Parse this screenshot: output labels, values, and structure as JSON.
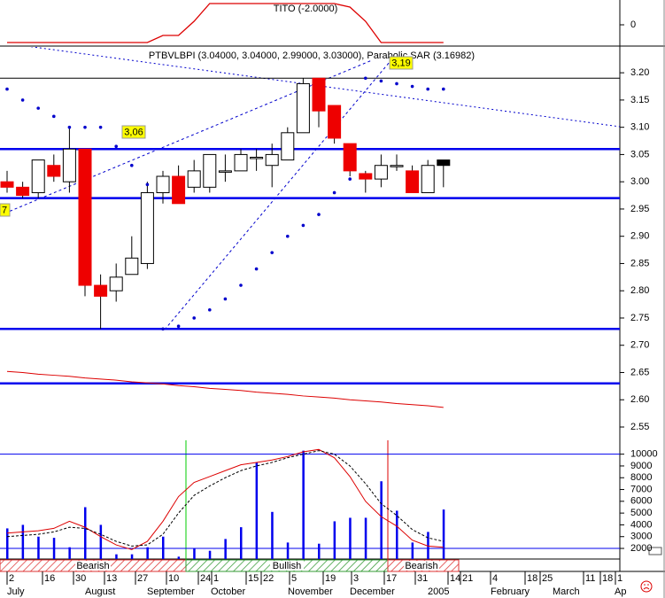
{
  "chart_data": [
    {
      "type": "candlestick",
      "title": "PTBVLBPI (3.04000, 3.04000, 2.99000, 3.03000), Parabolic SAR (3.16982)",
      "open": [
        3.0,
        2.99,
        2.98,
        3.03,
        3.0,
        3.06,
        2.81,
        2.8,
        2.83,
        2.85,
        2.98,
        3.01,
        2.99,
        2.99,
        3.02,
        3.02,
        3.045,
        3.03,
        3.04,
        3.09,
        3.19,
        3.14,
        3.07,
        3.015,
        3.005,
        3.03,
        3.02,
        2.98,
        3.04
      ],
      "high": [
        3.02,
        3.0,
        3.04,
        3.05,
        3.1,
        3.06,
        2.83,
        2.85,
        2.9,
        3.0,
        3.02,
        3.03,
        3.04,
        3.05,
        3.05,
        3.06,
        3.06,
        3.07,
        3.1,
        3.19,
        3.19,
        3.14,
        3.07,
        3.02,
        3.05,
        3.05,
        3.03,
        3.04,
        3.04
      ],
      "low": [
        2.98,
        2.97,
        2.97,
        3.0,
        2.98,
        2.79,
        2.73,
        2.78,
        2.83,
        2.84,
        2.96,
        2.96,
        2.98,
        2.98,
        3.0,
        3.02,
        3.02,
        2.99,
        3.04,
        3.09,
        3.1,
        3.07,
        3.01,
        2.98,
        2.99,
        3.02,
        2.98,
        2.98,
        2.99
      ],
      "close": [
        2.99,
        2.975,
        3.04,
        3.01,
        3.06,
        2.81,
        2.79,
        2.825,
        2.86,
        2.98,
        3.01,
        2.96,
        3.02,
        3.05,
        3.02,
        3.05,
        3.045,
        3.05,
        3.09,
        3.18,
        3.13,
        3.08,
        3.02,
        3.005,
        3.03,
        3.03,
        2.98,
        3.03,
        3.03
      ],
      "up_color": "#ffffff",
      "down_color": "#ee0000",
      "last_color": "#000000",
      "sar": [
        3.17,
        3.15,
        3.135,
        3.12,
        3.1,
        3.1,
        3.1,
        3.065,
        3.03,
        2.995,
        2.73,
        2.735,
        2.75,
        2.765,
        2.785,
        2.81,
        2.84,
        2.87,
        2.9,
        2.92,
        2.94,
        2.98,
        3.005,
        3.19,
        3.185,
        3.18,
        3.175,
        3.17,
        3.17
      ],
      "sar_color": "#0000cc",
      "ma": [
        2.652,
        2.65,
        2.647,
        2.645,
        2.643,
        2.64,
        2.638,
        2.636,
        2.633,
        2.631,
        2.629,
        2.626,
        2.624,
        2.621,
        2.619,
        2.617,
        2.614,
        2.612,
        2.61,
        2.607,
        2.605,
        2.603,
        2.6,
        2.598,
        2.596,
        2.593,
        2.591,
        2.589,
        2.586
      ],
      "ma_color": "#dd0000",
      "levels": [
        {
          "value": 3.19,
          "color": "#000000"
        },
        {
          "value": 3.06,
          "color": "#0000ee"
        },
        {
          "value": 2.97,
          "color": "#0000ee"
        },
        {
          "value": 2.73,
          "color": "#0000ee"
        },
        {
          "value": 2.63,
          "color": "#0000ee"
        }
      ],
      "annotations": [
        "3,06",
        "3,19",
        "7"
      ],
      "ylim": [
        2.537,
        3.249
      ],
      "yticks": [
        {
          "value": 3.2,
          "label": "3.20"
        },
        3.15,
        {
          "value": 3.1,
          "label": "3.10"
        },
        3.05,
        {
          "value": 3,
          "label": "3.00"
        },
        2.95,
        {
          "value": 2.9,
          "label": "2.90"
        },
        2.85,
        {
          "value": 2.8,
          "label": "2.80"
        },
        2.75,
        {
          "value": 2.7,
          "label": "2.70"
        },
        2.65,
        {
          "value": 2.6,
          "label": "2.60"
        },
        2.55
      ]
    },
    {
      "type": "line",
      "title": "TITO (-2.0000)",
      "values": [
        -2,
        -2,
        -2,
        -2,
        -2,
        -2,
        -2,
        -2,
        -2,
        -2,
        -1.2,
        -1.2,
        0.4,
        2.4,
        2.4,
        2.4,
        2.4,
        2.4,
        2.4,
        2.4,
        2.4,
        2.4,
        2.0,
        0.4,
        -2,
        -2,
        -2,
        -2,
        -2
      ],
      "color": "#dd0000",
      "ylim": [
        -2.4,
        2.8
      ],
      "yticks": [
        0
      ]
    },
    {
      "type": "bar",
      "values": [
        3700,
        4000,
        3000,
        2900,
        2100,
        5500,
        4000,
        1500,
        1500,
        2100,
        3000,
        1300,
        2000,
        1800,
        2800,
        3800,
        9300,
        5100,
        2500,
        10300,
        2400,
        4300,
        4600,
        4600,
        7700,
        5200,
        2500,
        3400,
        5300
      ],
      "color": "#0000ee",
      "series": [
        {
          "color": "#dd0000",
          "dashed": false,
          "values": [
            3300,
            3400,
            3500,
            3700,
            4300,
            3800,
            3000,
            2300,
            1900,
            2600,
            4300,
            6400,
            7600,
            8100,
            8600,
            9100,
            9300,
            9500,
            9800,
            10200,
            10400,
            9700,
            8100,
            6000,
            4700,
            3900,
            2700,
            2200,
            2100
          ]
        },
        {
          "color": "#000000",
          "dashed": true,
          "values": [
            3000,
            3100,
            3200,
            3400,
            3800,
            3700,
            3200,
            2600,
            2200,
            2300,
            3200,
            5000,
            6500,
            7300,
            8000,
            8600,
            9000,
            9300,
            9700,
            10000,
            10300,
            10000,
            9000,
            7500,
            5800,
            4800,
            3600,
            2900,
            2600
          ]
        }
      ],
      "signals": [
        "Bearish",
        "Bullish",
        "Bearish"
      ],
      "ylim": [
        1100,
        10500
      ],
      "yticks": [
        2000,
        3000,
        4000,
        5000,
        6000,
        7000,
        8000,
        9000,
        10000
      ]
    }
  ],
  "time_axis": {
    "days": [
      "2",
      "16",
      "30",
      "13",
      "27",
      "10",
      "24",
      "1",
      "15",
      "22",
      "5",
      "19",
      "3",
      "17",
      "31",
      "14",
      "21",
      "4",
      "18",
      "25",
      "11",
      "18",
      "1"
    ],
    "months": [
      "July",
      "August",
      "September",
      "October",
      "November",
      "December",
      "2005",
      "February",
      "March",
      "Ap"
    ]
  }
}
